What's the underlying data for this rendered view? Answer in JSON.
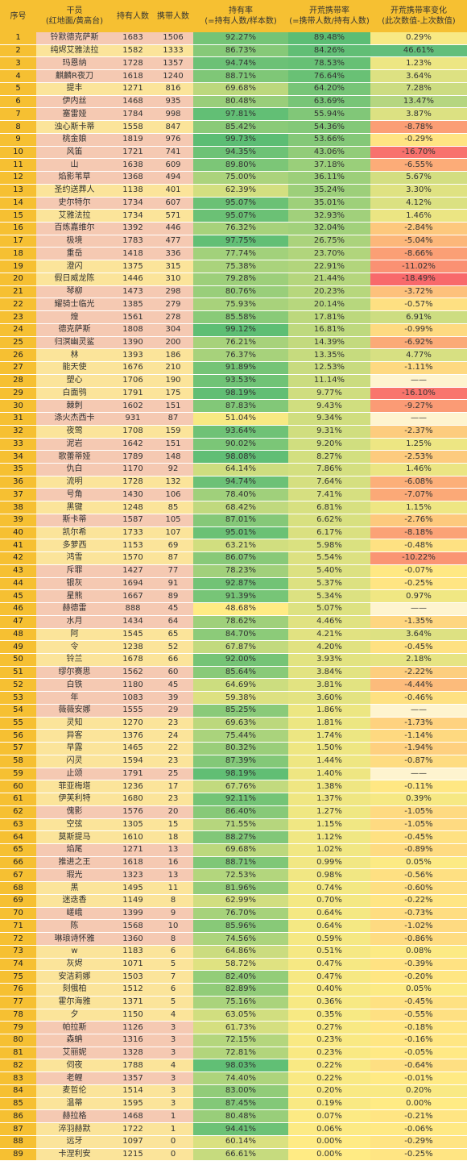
{
  "header": {
    "col_index": "序号",
    "col_name": "干员",
    "col_name_sub": "(红地面/黄高台)",
    "col_holders": "持有人数",
    "col_carriers": "携带人数",
    "col_hold_rate": "持有率",
    "col_hold_rate_sub": "(=持有人数/样本数)",
    "col_carry_rate": "开荒携带率",
    "col_carry_rate_sub": "(=携带人数/持有人数)",
    "col_change": "开荒携带率变化",
    "col_change_sub": "(此次数值-上次数值)"
  },
  "colors": {
    "index_bg": "#f6c032",
    "melee_bg": "#f5c9b2",
    "ranged_bg": "#fbe49a",
    "rate_high": "#5cbd74",
    "rate_mid": "#ffeb84",
    "change_pos": "#63be7b",
    "change_neg": "#f8696b",
    "change_zero": "#ffeb84",
    "change_none": "#fef4cf"
  },
  "rows": [
    [
      "1",
      "铃默德克萨斯",
      "melee",
      "1683",
      "1506",
      "92.27%",
      "89.48%",
      "0.29%"
    ],
    [
      "2",
      "纯烬艾雅法拉",
      "ranged",
      "1582",
      "1333",
      "86.73%",
      "84.26%",
      "46.61%"
    ],
    [
      "3",
      "玛恩纳",
      "melee",
      "1728",
      "1357",
      "94.74%",
      "78.53%",
      "1.23%"
    ],
    [
      "4",
      "麒麟R夜刀",
      "melee",
      "1618",
      "1240",
      "88.71%",
      "76.64%",
      "3.64%"
    ],
    [
      "5",
      "提丰",
      "ranged",
      "1271",
      "816",
      "69.68%",
      "64.20%",
      "7.28%"
    ],
    [
      "6",
      "伊内丝",
      "melee",
      "1468",
      "935",
      "80.48%",
      "63.69%",
      "13.47%"
    ],
    [
      "7",
      "塞雷娅",
      "melee",
      "1784",
      "998",
      "97.81%",
      "55.94%",
      "3.87%"
    ],
    [
      "8",
      "浊心斯卡蒂",
      "ranged",
      "1558",
      "847",
      "85.42%",
      "54.36%",
      "-8.78%"
    ],
    [
      "9",
      "桃金娘",
      "melee",
      "1819",
      "976",
      "99.73%",
      "53.66%",
      "-0.29%"
    ],
    [
      "10",
      "风笛",
      "melee",
      "1721",
      "741",
      "94.35%",
      "43.06%",
      "-16.70%"
    ],
    [
      "11",
      "山",
      "melee",
      "1638",
      "609",
      "89.80%",
      "37.18%",
      "-6.55%"
    ],
    [
      "12",
      "焰影苇草",
      "melee",
      "1368",
      "494",
      "75.00%",
      "36.11%",
      "5.67%"
    ],
    [
      "13",
      "圣约送葬人",
      "ranged",
      "1138",
      "401",
      "62.39%",
      "35.24%",
      "3.30%"
    ],
    [
      "14",
      "史尔特尔",
      "melee",
      "1734",
      "607",
      "95.07%",
      "35.01%",
      "4.12%"
    ],
    [
      "15",
      "艾雅法拉",
      "ranged",
      "1734",
      "571",
      "95.07%",
      "32.93%",
      "1.46%"
    ],
    [
      "16",
      "百炼嘉维尔",
      "melee",
      "1392",
      "446",
      "76.32%",
      "32.04%",
      "-2.84%"
    ],
    [
      "17",
      "极境",
      "melee",
      "1783",
      "477",
      "97.75%",
      "26.75%",
      "-5.04%"
    ],
    [
      "18",
      "重岳",
      "melee",
      "1418",
      "336",
      "77.74%",
      "23.70%",
      "-8.66%"
    ],
    [
      "19",
      "澄闪",
      "ranged",
      "1375",
      "315",
      "75.38%",
      "22.91%",
      "-11.02%"
    ],
    [
      "20",
      "假日威龙陈",
      "ranged",
      "1446",
      "310",
      "79.28%",
      "21.44%",
      "-18.49%"
    ],
    [
      "21",
      "琴柳",
      "melee",
      "1473",
      "298",
      "80.76%",
      "20.23%",
      "-3.72%"
    ],
    [
      "22",
      "耀骑士临光",
      "melee",
      "1385",
      "279",
      "75.93%",
      "20.14%",
      "-0.57%"
    ],
    [
      "23",
      "煌",
      "melee",
      "1561",
      "278",
      "85.58%",
      "17.81%",
      "6.91%"
    ],
    [
      "24",
      "德克萨斯",
      "melee",
      "1808",
      "304",
      "99.12%",
      "16.81%",
      "-0.99%"
    ],
    [
      "25",
      "归溟幽灵鲨",
      "melee",
      "1390",
      "200",
      "76.21%",
      "14.39%",
      "-6.92%"
    ],
    [
      "26",
      "林",
      "ranged",
      "1393",
      "186",
      "76.37%",
      "13.35%",
      "4.77%"
    ],
    [
      "27",
      "能天使",
      "ranged",
      "1676",
      "210",
      "91.89%",
      "12.53%",
      "-1.11%"
    ],
    [
      "28",
      "塑心",
      "ranged",
      "1706",
      "190",
      "93.53%",
      "11.14%",
      "——"
    ],
    [
      "29",
      "白面鸮",
      "ranged",
      "1791",
      "175",
      "98.19%",
      "9.77%",
      "-16.10%"
    ],
    [
      "30",
      "棘刺",
      "melee",
      "1602",
      "151",
      "87.83%",
      "9.43%",
      "-9.27%"
    ],
    [
      "31",
      "涤火杰西卡",
      "melee",
      "931",
      "87",
      "51.04%",
      "9.34%",
      "——"
    ],
    [
      "32",
      "夜莺",
      "ranged",
      "1708",
      "159",
      "93.64%",
      "9.31%",
      "-2.37%"
    ],
    [
      "33",
      "泥岩",
      "melee",
      "1642",
      "151",
      "90.02%",
      "9.20%",
      "1.25%"
    ],
    [
      "34",
      "歌蕾蒂娅",
      "melee",
      "1789",
      "148",
      "98.08%",
      "8.27%",
      "-2.53%"
    ],
    [
      "35",
      "仇白",
      "melee",
      "1170",
      "92",
      "64.14%",
      "7.86%",
      "1.46%"
    ],
    [
      "36",
      "流明",
      "ranged",
      "1728",
      "132",
      "94.74%",
      "7.64%",
      "-6.08%"
    ],
    [
      "37",
      "号角",
      "melee",
      "1430",
      "106",
      "78.40%",
      "7.41%",
      "-7.07%"
    ],
    [
      "38",
      "黑键",
      "ranged",
      "1248",
      "85",
      "68.42%",
      "6.81%",
      "1.15%"
    ],
    [
      "39",
      "斯卡蒂",
      "melee",
      "1587",
      "105",
      "87.01%",
      "6.62%",
      "-2.76%"
    ],
    [
      "40",
      "凯尔希",
      "ranged",
      "1733",
      "107",
      "95.01%",
      "6.17%",
      "-8.18%"
    ],
    [
      "41",
      "多萝西",
      "ranged",
      "1153",
      "69",
      "63.21%",
      "5.98%",
      "-0.48%"
    ],
    [
      "42",
      "鸿雪",
      "ranged",
      "1570",
      "87",
      "86.07%",
      "5.54%",
      "-10.22%"
    ],
    [
      "43",
      "斥罪",
      "melee",
      "1427",
      "77",
      "78.23%",
      "5.40%",
      "-0.07%"
    ],
    [
      "44",
      "银灰",
      "melee",
      "1694",
      "91",
      "92.87%",
      "5.37%",
      "-0.25%"
    ],
    [
      "45",
      "星熊",
      "melee",
      "1667",
      "89",
      "91.39%",
      "5.34%",
      "0.97%"
    ],
    [
      "46",
      "赫德雷",
      "melee",
      "888",
      "45",
      "48.68%",
      "5.07%",
      "——"
    ],
    [
      "47",
      "水月",
      "melee",
      "1434",
      "64",
      "78.62%",
      "4.46%",
      "-1.35%"
    ],
    [
      "48",
      "阿",
      "ranged",
      "1545",
      "65",
      "84.70%",
      "4.21%",
      "3.64%"
    ],
    [
      "49",
      "令",
      "ranged",
      "1238",
      "52",
      "67.87%",
      "4.20%",
      "-0.45%"
    ],
    [
      "50",
      "铃兰",
      "ranged",
      "1678",
      "66",
      "92.00%",
      "3.93%",
      "2.18%"
    ],
    [
      "51",
      "缪尔赛思",
      "melee",
      "1562",
      "60",
      "85.64%",
      "3.84%",
      "-2.22%"
    ],
    [
      "52",
      "白铁",
      "melee",
      "1180",
      "45",
      "64.69%",
      "3.81%",
      "-4.44%"
    ],
    [
      "53",
      "年",
      "melee",
      "1083",
      "39",
      "59.38%",
      "3.60%",
      "-0.46%"
    ],
    [
      "54",
      "薇薇安娜",
      "melee",
      "1555",
      "29",
      "85.25%",
      "1.86%",
      "——"
    ],
    [
      "55",
      "灵知",
      "ranged",
      "1270",
      "23",
      "69.63%",
      "1.81%",
      "-1.73%"
    ],
    [
      "56",
      "异客",
      "ranged",
      "1376",
      "24",
      "75.44%",
      "1.74%",
      "-1.14%"
    ],
    [
      "57",
      "早露",
      "ranged",
      "1465",
      "22",
      "80.32%",
      "1.50%",
      "-1.94%"
    ],
    [
      "58",
      "闪灵",
      "ranged",
      "1594",
      "23",
      "87.39%",
      "1.44%",
      "-0.87%"
    ],
    [
      "59",
      "止颂",
      "melee",
      "1791",
      "25",
      "98.19%",
      "1.40%",
      "——"
    ],
    [
      "60",
      "菲亚梅塔",
      "ranged",
      "1236",
      "17",
      "67.76%",
      "1.38%",
      "-0.11%"
    ],
    [
      "61",
      "伊芙利特",
      "ranged",
      "1680",
      "23",
      "92.11%",
      "1.37%",
      "0.39%"
    ],
    [
      "62",
      "傀影",
      "melee",
      "1576",
      "20",
      "86.40%",
      "1.27%",
      "-1.05%"
    ],
    [
      "63",
      "空弦",
      "ranged",
      "1305",
      "15",
      "71.55%",
      "1.15%",
      "-1.05%"
    ],
    [
      "64",
      "莫斯提马",
      "ranged",
      "1610",
      "18",
      "88.27%",
      "1.12%",
      "-0.45%"
    ],
    [
      "65",
      "焰尾",
      "melee",
      "1271",
      "13",
      "69.68%",
      "1.02%",
      "-0.89%"
    ],
    [
      "66",
      "推进之王",
      "melee",
      "1618",
      "16",
      "88.71%",
      "0.99%",
      "0.05%"
    ],
    [
      "67",
      "瑕光",
      "melee",
      "1323",
      "13",
      "72.53%",
      "0.98%",
      "-0.56%"
    ],
    [
      "68",
      "黑",
      "ranged",
      "1495",
      "11",
      "81.96%",
      "0.74%",
      "-0.60%"
    ],
    [
      "69",
      "迷迭香",
      "ranged",
      "1149",
      "8",
      "62.99%",
      "0.70%",
      "-0.22%"
    ],
    [
      "70",
      "嵯峨",
      "melee",
      "1399",
      "9",
      "76.70%",
      "0.64%",
      "-0.73%"
    ],
    [
      "71",
      "陈",
      "melee",
      "1568",
      "10",
      "85.96%",
      "0.64%",
      "-1.02%"
    ],
    [
      "72",
      "琳琅诗怀雅",
      "melee",
      "1360",
      "8",
      "74.56%",
      "0.59%",
      "-0.86%"
    ],
    [
      "73",
      "w",
      "ranged",
      "1183",
      "6",
      "64.86%",
      "0.51%",
      "0.08%"
    ],
    [
      "74",
      "灰烬",
      "ranged",
      "1071",
      "5",
      "58.72%",
      "0.47%",
      "-0.39%"
    ],
    [
      "75",
      "安洁莉娜",
      "ranged",
      "1503",
      "7",
      "82.40%",
      "0.47%",
      "-0.20%"
    ],
    [
      "76",
      "刻俄柏",
      "ranged",
      "1512",
      "6",
      "82.89%",
      "0.40%",
      "0.05%"
    ],
    [
      "77",
      "霍尔海雅",
      "ranged",
      "1371",
      "5",
      "75.16%",
      "0.36%",
      "-0.45%"
    ],
    [
      "78",
      "夕",
      "ranged",
      "1150",
      "4",
      "63.05%",
      "0.35%",
      "-0.55%"
    ],
    [
      "79",
      "帕拉斯",
      "melee",
      "1126",
      "3",
      "61.73%",
      "0.27%",
      "-0.18%"
    ],
    [
      "80",
      "森蚺",
      "melee",
      "1316",
      "3",
      "72.15%",
      "0.23%",
      "-0.16%"
    ],
    [
      "81",
      "艾丽妮",
      "melee",
      "1328",
      "3",
      "72.81%",
      "0.23%",
      "-0.05%"
    ],
    [
      "82",
      "伺夜",
      "ranged",
      "1788",
      "4",
      "98.03%",
      "0.22%",
      "-0.64%"
    ],
    [
      "83",
      "老鲤",
      "melee",
      "1357",
      "3",
      "74.40%",
      "0.22%",
      "-0.01%"
    ],
    [
      "84",
      "麦哲伦",
      "ranged",
      "1514",
      "3",
      "83.00%",
      "0.20%",
      "0.20%"
    ],
    [
      "85",
      "温蒂",
      "ranged",
      "1595",
      "3",
      "87.45%",
      "0.19%",
      "0.00%"
    ],
    [
      "86",
      "赫拉格",
      "melee",
      "1468",
      "1",
      "80.48%",
      "0.07%",
      "-0.21%"
    ],
    [
      "87",
      "淬羽赫默",
      "ranged",
      "1722",
      "1",
      "94.41%",
      "0.06%",
      "-0.06%"
    ],
    [
      "88",
      "远牙",
      "ranged",
      "1097",
      "0",
      "60.14%",
      "0.00%",
      "-0.29%"
    ],
    [
      "89",
      "卡涅利安",
      "ranged",
      "1215",
      "0",
      "66.61%",
      "0.00%",
      "-0.25%"
    ]
  ]
}
